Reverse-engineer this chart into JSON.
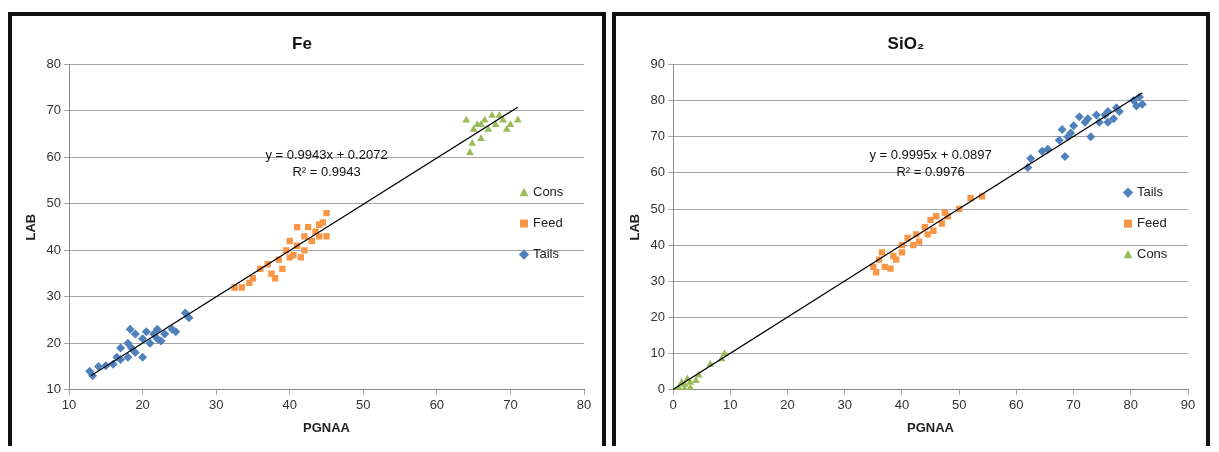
{
  "chart_data": [
    {
      "type": "scatter",
      "title": "Fe",
      "xlabel": "PGNAA",
      "ylabel": "LAB",
      "xlim": [
        10,
        80
      ],
      "xticks": [
        10,
        20,
        30,
        40,
        50,
        60,
        70,
        80
      ],
      "ylim": [
        10,
        80
      ],
      "yticks": [
        10,
        20,
        30,
        40,
        50,
        60,
        70,
        80
      ],
      "grid": "y",
      "legend": "right",
      "annotations": [
        "y = 0.9943x + 0.2072",
        "R² = 0.9943"
      ],
      "series": [
        {
          "name": "Cons",
          "color": "#9bbb59",
          "marker": "triangle",
          "x": [
            64,
            64.5,
            64.8,
            65,
            65.5,
            66,
            66.5,
            67,
            67.5,
            68,
            68.5,
            69,
            69.5,
            70,
            71,
            66
          ],
          "values": [
            68,
            61,
            63,
            66,
            67,
            64,
            68,
            66,
            69,
            67,
            69,
            68,
            66,
            67,
            68,
            67
          ]
        },
        {
          "name": "Feed",
          "color": "#f79646",
          "marker": "square",
          "x": [
            32.5,
            33.5,
            34.5,
            35,
            36,
            37,
            37.5,
            38,
            38.5,
            39,
            39.5,
            40,
            40.5,
            41,
            41.5,
            42,
            42,
            42.5,
            43,
            43.5,
            44,
            44.5,
            45,
            45,
            44,
            41,
            40
          ],
          "values": [
            32,
            32,
            33,
            34,
            36,
            37,
            35,
            34,
            38,
            36,
            40,
            42,
            39,
            41,
            38.5,
            43,
            40,
            45,
            42,
            44,
            43,
            46,
            48,
            43,
            45.5,
            45,
            38.5
          ]
        },
        {
          "name": "Tails",
          "color": "#4f81bd",
          "marker": "diamond",
          "x": [
            12.8,
            13.2,
            14,
            15,
            16,
            16.5,
            17,
            17,
            18,
            18,
            18.3,
            19,
            19,
            20,
            20,
            20.5,
            21,
            21.5,
            22,
            22,
            22.5,
            23,
            24,
            24.5,
            25.8,
            26.3,
            18.5
          ],
          "values": [
            14,
            13,
            15,
            15.2,
            15.5,
            17,
            16.5,
            19,
            17,
            20,
            23,
            18,
            22,
            17,
            21,
            22.5,
            20,
            22,
            21,
            23,
            20.5,
            22,
            23,
            22.5,
            26.5,
            25.5,
            19
          ]
        },
        {
          "type": "line",
          "color": "#000000",
          "marker": "none",
          "x": [
            13,
            71
          ],
          "values": [
            13.1,
            70.8
          ]
        }
      ]
    },
    {
      "type": "scatter",
      "title": "SiO₂",
      "xlabel": "PGNAA",
      "ylabel": "LAB",
      "xlim": [
        0,
        90
      ],
      "xticks": [
        0,
        10,
        20,
        30,
        40,
        50,
        60,
        70,
        80,
        90
      ],
      "ylim": [
        0,
        90
      ],
      "yticks": [
        0,
        10,
        20,
        30,
        40,
        50,
        60,
        70,
        80,
        90
      ],
      "grid": "y",
      "legend": "right",
      "annotations": [
        "y = 0.9995x + 0.0897",
        "R² = 0.9976"
      ],
      "series": [
        {
          "name": "Tails",
          "color": "#4f81bd",
          "marker": "diamond",
          "x": [
            62,
            62.5,
            64.5,
            65.5,
            67.5,
            68,
            68.5,
            69,
            69.5,
            70,
            71,
            72,
            72.5,
            73,
            74,
            74.5,
            75.5,
            76,
            76,
            77,
            77.5,
            78,
            81,
            81.5,
            82,
            80.5
          ],
          "values": [
            61.5,
            64,
            66,
            66.5,
            69,
            72,
            64.5,
            70,
            71,
            73,
            75.5,
            74,
            75,
            70,
            76,
            74,
            76,
            77,
            74,
            75,
            78,
            77,
            78.5,
            81,
            79,
            80
          ]
        },
        {
          "name": "Feed",
          "color": "#f79646",
          "marker": "square",
          "x": [
            35,
            35.5,
            36,
            36.5,
            37,
            38,
            38.5,
            39,
            40,
            41,
            42,
            42.5,
            43,
            44,
            44.5,
            45,
            45.5,
            46,
            47,
            47.5,
            48,
            50,
            52,
            54,
            40
          ],
          "values": [
            34,
            32.5,
            36,
            38,
            34,
            33.5,
            37,
            36,
            40,
            42,
            40,
            43,
            41,
            45,
            43,
            47,
            44,
            48,
            46,
            49,
            48,
            50,
            53,
            53.5,
            38
          ]
        },
        {
          "name": "Cons",
          "color": "#9bbb59",
          "marker": "triangle",
          "x": [
            1,
            1.5,
            2,
            2.5,
            3,
            4,
            4.5,
            6.5,
            9,
            8.5,
            2,
            3
          ],
          "values": [
            0.5,
            2,
            1.5,
            3,
            2,
            2.5,
            4,
            7,
            10,
            8.5,
            0.2,
            0.5
          ]
        },
        {
          "type": "line",
          "color": "#000000",
          "marker": "none",
          "x": [
            0,
            82
          ],
          "values": [
            0.1,
            82.1
          ]
        }
      ]
    }
  ]
}
